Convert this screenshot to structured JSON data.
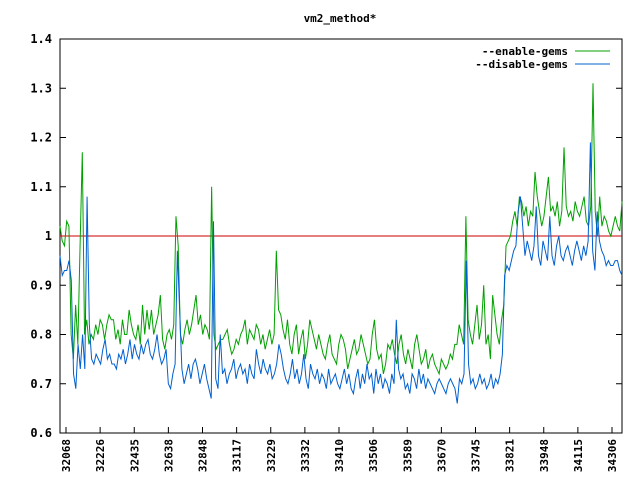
{
  "chart_data": {
    "type": "line",
    "title": "vm2_method*",
    "xlabel": "",
    "ylabel": "",
    "ylim": [
      0.6,
      1.4
    ],
    "yticks": [
      "0.6",
      "0.7",
      "0.8",
      "0.9",
      "1",
      "1.1",
      "1.2",
      "1.3",
      "1.4"
    ],
    "xticks": [
      "32068",
      "32226",
      "32435",
      "32638",
      "32848",
      "33117",
      "33229",
      "33332",
      "33410",
      "33506",
      "33589",
      "33670",
      "33745",
      "33821",
      "33948",
      "34115",
      "34306"
    ],
    "grid": false,
    "legend_position": "top-right",
    "reference_line": {
      "value": 1.0,
      "color": "#cc0000"
    },
    "series": [
      {
        "name": "--enable-gems",
        "color": "#00a000",
        "values": [
          1.02,
          0.99,
          0.98,
          1.03,
          1.02,
          0.8,
          0.75,
          0.86,
          0.78,
          0.98,
          1.17,
          0.8,
          0.83,
          0.78,
          0.8,
          0.79,
          0.82,
          0.8,
          0.83,
          0.82,
          0.79,
          0.82,
          0.84,
          0.83,
          0.83,
          0.79,
          0.81,
          0.78,
          0.83,
          0.8,
          0.8,
          0.85,
          0.82,
          0.8,
          0.79,
          0.82,
          0.78,
          0.86,
          0.8,
          0.85,
          0.81,
          0.85,
          0.8,
          0.82,
          0.84,
          0.88,
          0.79,
          0.77,
          0.8,
          0.81,
          0.79,
          0.82,
          1.04,
          0.98,
          0.8,
          0.78,
          0.81,
          0.83,
          0.8,
          0.82,
          0.85,
          0.88,
          0.82,
          0.84,
          0.8,
          0.82,
          0.81,
          0.79,
          1.1,
          0.8,
          0.77,
          0.78,
          0.79,
          0.79,
          0.8,
          0.81,
          0.78,
          0.76,
          0.77,
          0.79,
          0.78,
          0.8,
          0.81,
          0.83,
          0.78,
          0.81,
          0.8,
          0.79,
          0.82,
          0.81,
          0.78,
          0.8,
          0.77,
          0.79,
          0.81,
          0.78,
          0.8,
          0.97,
          0.85,
          0.84,
          0.81,
          0.79,
          0.83,
          0.78,
          0.76,
          0.8,
          0.82,
          0.76,
          0.79,
          0.81,
          0.75,
          0.78,
          0.83,
          0.81,
          0.79,
          0.77,
          0.8,
          0.78,
          0.76,
          0.75,
          0.78,
          0.8,
          0.76,
          0.75,
          0.74,
          0.78,
          0.8,
          0.79,
          0.77,
          0.73,
          0.75,
          0.77,
          0.79,
          0.76,
          0.77,
          0.8,
          0.78,
          0.76,
          0.74,
          0.75,
          0.8,
          0.83,
          0.77,
          0.75,
          0.76,
          0.72,
          0.74,
          0.78,
          0.77,
          0.79,
          0.76,
          0.74,
          0.78,
          0.8,
          0.76,
          0.74,
          0.77,
          0.75,
          0.73,
          0.78,
          0.8,
          0.77,
          0.74,
          0.75,
          0.77,
          0.73,
          0.75,
          0.76,
          0.74,
          0.73,
          0.72,
          0.75,
          0.74,
          0.73,
          0.74,
          0.76,
          0.75,
          0.78,
          0.78,
          0.82,
          0.8,
          0.78,
          1.04,
          0.83,
          0.8,
          0.78,
          0.82,
          0.86,
          0.79,
          0.82,
          0.9,
          0.78,
          0.8,
          0.75,
          0.88,
          0.84,
          0.8,
          0.78,
          0.83,
          0.86,
          0.98,
          0.99,
          1.0,
          1.03,
          1.05,
          1.02,
          1.08,
          1.07,
          1.04,
          1.06,
          1.02,
          1.05,
          1.04,
          1.13,
          1.08,
          1.05,
          1.02,
          1.04,
          1.08,
          1.12,
          1.05,
          1.06,
          1.04,
          1.07,
          1.02,
          1.05,
          1.18,
          1.06,
          1.04,
          1.05,
          1.03,
          1.07,
          1.05,
          1.04,
          1.06,
          1.08,
          1.03,
          1.02,
          1.06,
          1.31,
          1.05,
          1.0,
          1.08,
          1.02,
          1.04,
          1.03,
          1.01,
          1.0,
          1.02,
          1.04,
          1.02,
          1.01,
          1.07
        ]
      },
      {
        "name": "--disable-gems",
        "color": "#0060d0",
        "values": [
          0.96,
          0.92,
          0.93,
          0.93,
          0.95,
          0.91,
          0.72,
          0.69,
          0.78,
          0.73,
          0.8,
          0.73,
          1.08,
          0.82,
          0.75,
          0.74,
          0.76,
          0.75,
          0.74,
          0.77,
          0.79,
          0.75,
          0.76,
          0.74,
          0.74,
          0.73,
          0.76,
          0.75,
          0.77,
          0.74,
          0.76,
          0.79,
          0.75,
          0.78,
          0.76,
          0.75,
          0.78,
          0.76,
          0.78,
          0.79,
          0.76,
          0.75,
          0.77,
          0.8,
          0.76,
          0.74,
          0.75,
          0.77,
          0.7,
          0.69,
          0.72,
          0.74,
          0.97,
          0.85,
          0.73,
          0.7,
          0.72,
          0.74,
          0.71,
          0.74,
          0.75,
          0.73,
          0.7,
          0.72,
          0.74,
          0.71,
          0.69,
          0.67,
          1.03,
          0.71,
          0.69,
          0.8,
          0.72,
          0.73,
          0.7,
          0.72,
          0.73,
          0.75,
          0.71,
          0.73,
          0.74,
          0.72,
          0.73,
          0.7,
          0.74,
          0.72,
          0.71,
          0.77,
          0.74,
          0.72,
          0.75,
          0.73,
          0.72,
          0.74,
          0.71,
          0.72,
          0.74,
          0.78,
          0.76,
          0.73,
          0.71,
          0.7,
          0.72,
          0.75,
          0.71,
          0.73,
          0.7,
          0.72,
          0.76,
          0.71,
          0.69,
          0.74,
          0.72,
          0.71,
          0.73,
          0.7,
          0.72,
          0.71,
          0.69,
          0.73,
          0.7,
          0.71,
          0.72,
          0.7,
          0.69,
          0.71,
          0.73,
          0.7,
          0.72,
          0.69,
          0.68,
          0.71,
          0.73,
          0.69,
          0.72,
          0.7,
          0.74,
          0.71,
          0.72,
          0.68,
          0.73,
          0.7,
          0.72,
          0.69,
          0.71,
          0.7,
          0.68,
          0.72,
          0.7,
          0.83,
          0.73,
          0.71,
          0.72,
          0.69,
          0.7,
          0.68,
          0.72,
          0.71,
          0.69,
          0.73,
          0.7,
          0.72,
          0.69,
          0.71,
          0.7,
          0.69,
          0.68,
          0.7,
          0.71,
          0.7,
          0.69,
          0.68,
          0.7,
          0.71,
          0.7,
          0.69,
          0.66,
          0.71,
          0.7,
          0.72,
          0.95,
          0.74,
          0.7,
          0.71,
          0.69,
          0.7,
          0.72,
          0.7,
          0.71,
          0.69,
          0.7,
          0.72,
          0.69,
          0.71,
          0.7,
          0.72,
          0.76,
          0.92,
          0.94,
          0.93,
          0.95,
          0.97,
          0.98,
          1.05,
          1.08,
          1.02,
          0.96,
          0.99,
          0.97,
          0.95,
          0.98,
          1.06,
          0.96,
          0.94,
          0.99,
          0.97,
          0.95,
          1.04,
          0.96,
          0.94,
          0.98,
          1.0,
          0.96,
          0.95,
          0.97,
          0.98,
          0.96,
          0.94,
          0.97,
          0.99,
          0.97,
          0.95,
          0.98,
          0.96,
          0.99,
          1.19,
          0.97,
          0.93,
          1.05,
          0.99,
          0.97,
          0.96,
          0.94,
          0.95,
          0.94,
          0.94,
          0.95,
          0.95,
          0.93,
          0.92
        ]
      }
    ]
  }
}
